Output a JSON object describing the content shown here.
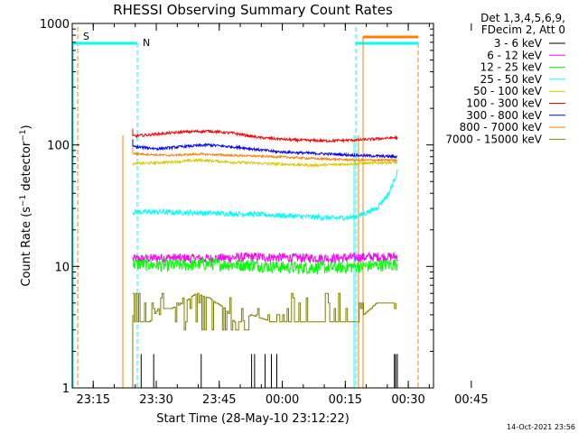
{
  "chart_data": {
    "type": "line",
    "title": "RHESSI Observing Summary Count Rates",
    "xlabel": "Start Time (28-May-10 23:12:22)",
    "ylabel": "Count Rate (s⁻¹ detector⁻¹)",
    "yscale": "log",
    "ylim": [
      1,
      1000
    ],
    "xlim_min": [
      -2.4,
      83.6
    ],
    "x_unit": "minutes after 23:12:22",
    "xticks": [
      {
        "label": "23:15",
        "t": 2.6
      },
      {
        "label": "23:30",
        "t": 17.6
      },
      {
        "label": "23:45",
        "t": 32.6
      },
      {
        "label": "00:00",
        "t": 47.6
      },
      {
        "label": "00:15",
        "t": 62.6
      },
      {
        "label": "00:30",
        "t": 77.6
      },
      {
        "label": "00:45",
        "t": 92.6
      }
    ],
    "yticks": [
      {
        "label": "1",
        "v": 1
      },
      {
        "label": "10",
        "v": 10
      },
      {
        "label": "100",
        "v": 100
      },
      {
        "label": "1000",
        "v": 1000
      }
    ],
    "legend_header": [
      "Det 1,3,4,5,6,9,",
      "FDecim 2, Att 0"
    ],
    "legend_placement": "top-right outside",
    "series": [
      {
        "name": "3 - 6 keV",
        "color": "#000000",
        "t": [
          26,
          26.5,
          28,
          28.3,
          40,
          40.3,
          46,
          46.3,
          74,
          74.3
        ],
        "v": [
          1,
          1,
          1,
          1.9,
          1,
          1.9,
          1,
          1.9,
          1,
          1.9
        ]
      },
      {
        "name": "6 - 12 keV",
        "color": "#ff00ff",
        "t": [
          12,
          20,
          30,
          40,
          50,
          60,
          70,
          75
        ],
        "v": [
          11.5,
          11.8,
          11.6,
          12,
          11.8,
          11.7,
          12,
          12
        ]
      },
      {
        "name": "12 - 25 keV",
        "color": "#00ff00",
        "t": [
          12,
          20,
          30,
          40,
          50,
          60,
          70,
          75
        ],
        "v": [
          10.5,
          10.2,
          10.5,
          10.3,
          9.8,
          9.8,
          10.2,
          10.5
        ]
      },
      {
        "name": "25 - 50 keV",
        "color": "#00ffff",
        "t": [
          12,
          20,
          30,
          40,
          50,
          60,
          65,
          70,
          73,
          75
        ],
        "v": [
          28,
          28,
          27.5,
          27,
          26,
          25,
          25.5,
          30,
          40,
          60
        ]
      },
      {
        "name": "50 - 100 keV",
        "color": "#d8c800",
        "t": [
          12,
          20,
          28,
          36,
          45,
          55,
          65,
          75
        ],
        "v": [
          70,
          72,
          75,
          72,
          70,
          68,
          70,
          72
        ]
      },
      {
        "name": "100 - 300 keV",
        "color": "#ff0000",
        "t": [
          12,
          18,
          24,
          30,
          36,
          42,
          50,
          58,
          66,
          75
        ],
        "v": [
          118,
          123,
          128,
          130,
          125,
          115,
          110,
          108,
          110,
          115
        ]
      },
      {
        "name": "300 - 800 keV",
        "color": "#0000ff",
        "t": [
          12,
          18,
          24,
          30,
          38,
          46,
          56,
          66,
          75
        ],
        "v": [
          97,
          93,
          97,
          100,
          95,
          88,
          85,
          82,
          80
        ]
      },
      {
        "name": "800 - 7000 keV",
        "color": "#ff8000",
        "t": [
          12,
          20,
          28,
          36,
          46,
          56,
          66,
          75
        ],
        "v": [
          85,
          82,
          84,
          82,
          80,
          77,
          75,
          75
        ]
      },
      {
        "name": "7000 - 15000 keV",
        "color": "#808000",
        "t": [
          12,
          14,
          16,
          18,
          20,
          21,
          24,
          27,
          30,
          34,
          36,
          38,
          40,
          45,
          50,
          55,
          60,
          65,
          70,
          74,
          75
        ],
        "v": [
          3.5,
          3.5,
          3.5,
          4.5,
          4.5,
          4.5,
          5,
          6,
          5.5,
          4.5,
          3.5,
          3.5,
          4,
          3.5,
          3.5,
          3.5,
          3.5,
          3.5,
          5,
          5,
          5
        ]
      }
    ],
    "annotations": [
      {
        "label": "S",
        "color": "#ff8000"
      },
      {
        "label": "N",
        "color": "#00e0e0"
      }
    ],
    "footer_date": "14-Oct-2021 23:56"
  }
}
